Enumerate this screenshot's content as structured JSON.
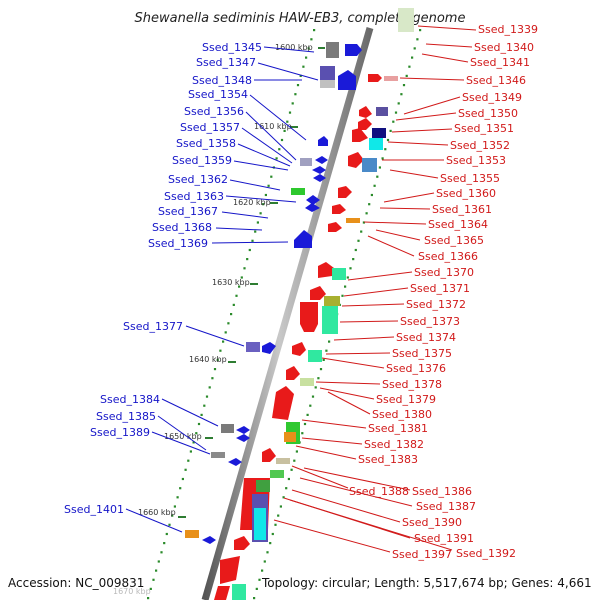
{
  "title": "Shewanella sediminis HAW-EB3, complete genome",
  "footer": {
    "accession": "Accession: NC_009831",
    "summary": "Topology: circular; Length: 5,517,674 bp; Genes: 4,661"
  },
  "kbp_labels": [
    "1600 kbp",
    "1610 kbp",
    "1620 kbp",
    "1630 kbp",
    "1640 kbp",
    "1650 kbp",
    "1660 kbp",
    "1670 kbp"
  ],
  "left_genes": [
    "Ssed_1345",
    "Ssed_1347",
    "Ssed_1348",
    "Ssed_1354",
    "Ssed_1356",
    "Ssed_1357",
    "Ssed_1358",
    "Ssed_1359",
    "Ssed_1362",
    "Ssed_1363",
    "Ssed_1367",
    "Ssed_1368",
    "Ssed_1369",
    "Ssed_1377",
    "Ssed_1384",
    "Ssed_1385",
    "Ssed_1389",
    "Ssed_1401"
  ],
  "right_genes": [
    "Ssed_1339",
    "Ssed_1340",
    "Ssed_1341",
    "Ssed_1346",
    "Ssed_1349",
    "Ssed_1350",
    "Ssed_1351",
    "Ssed_1352",
    "Ssed_1353",
    "Ssed_1355",
    "Ssed_1360",
    "Ssed_1361",
    "Ssed_1364",
    "Ssed_1365",
    "Ssed_1366",
    "Ssed_1370",
    "Ssed_1371",
    "Ssed_1372",
    "Ssed_1373",
    "Ssed_1374",
    "Ssed_1375",
    "Ssed_1376",
    "Ssed_1378",
    "Ssed_1379",
    "Ssed_1380",
    "Ssed_1381",
    "Ssed_1382",
    "Ssed_1383",
    "Ssed_1388",
    "Ssed_1386",
    "Ssed_1387",
    "Ssed_1390",
    "Ssed_1391",
    "Ssed_1392",
    "Ssed_1397"
  ],
  "colors": {
    "reverse_strand": "#1515c8",
    "forward_strand": "#d11a1a",
    "backbone": "#9a9a9a",
    "tick": "#2a8a2a",
    "kbp_tick": "#2e7d32"
  }
}
